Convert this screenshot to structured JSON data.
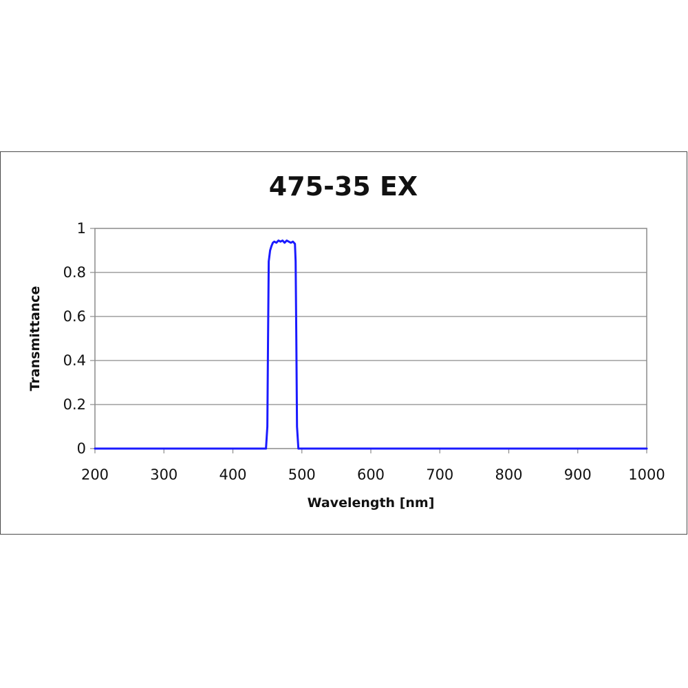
{
  "chart_data": {
    "type": "line",
    "title": "475-35 EX",
    "xlabel": "Wavelength [nm]",
    "ylabel": "Transmittance",
    "xlim": [
      200,
      1000
    ],
    "ylim": [
      0,
      1
    ],
    "x_ticks": [
      200,
      300,
      400,
      500,
      600,
      700,
      800,
      900,
      1000
    ],
    "y_ticks": [
      0,
      0.2,
      0.4,
      0.6,
      0.8,
      1
    ],
    "y_tick_labels": [
      "0",
      "0.2",
      "0.4",
      "0.6",
      "0.8",
      "1"
    ],
    "grid": "horizontal",
    "legend": "none",
    "series": [
      {
        "color": "#1a1aff",
        "x": [
          200,
          448,
          450,
          451,
          452,
          454,
          456,
          458,
          460,
          463,
          466,
          469,
          472,
          475,
          478,
          481,
          484,
          487,
          490,
          491,
          492,
          493,
          495,
          1000
        ],
        "y": [
          0,
          0,
          0.1,
          0.5,
          0.85,
          0.9,
          0.92,
          0.935,
          0.94,
          0.935,
          0.945,
          0.94,
          0.945,
          0.935,
          0.945,
          0.94,
          0.935,
          0.94,
          0.93,
          0.85,
          0.5,
          0.1,
          0,
          0
        ]
      }
    ]
  }
}
